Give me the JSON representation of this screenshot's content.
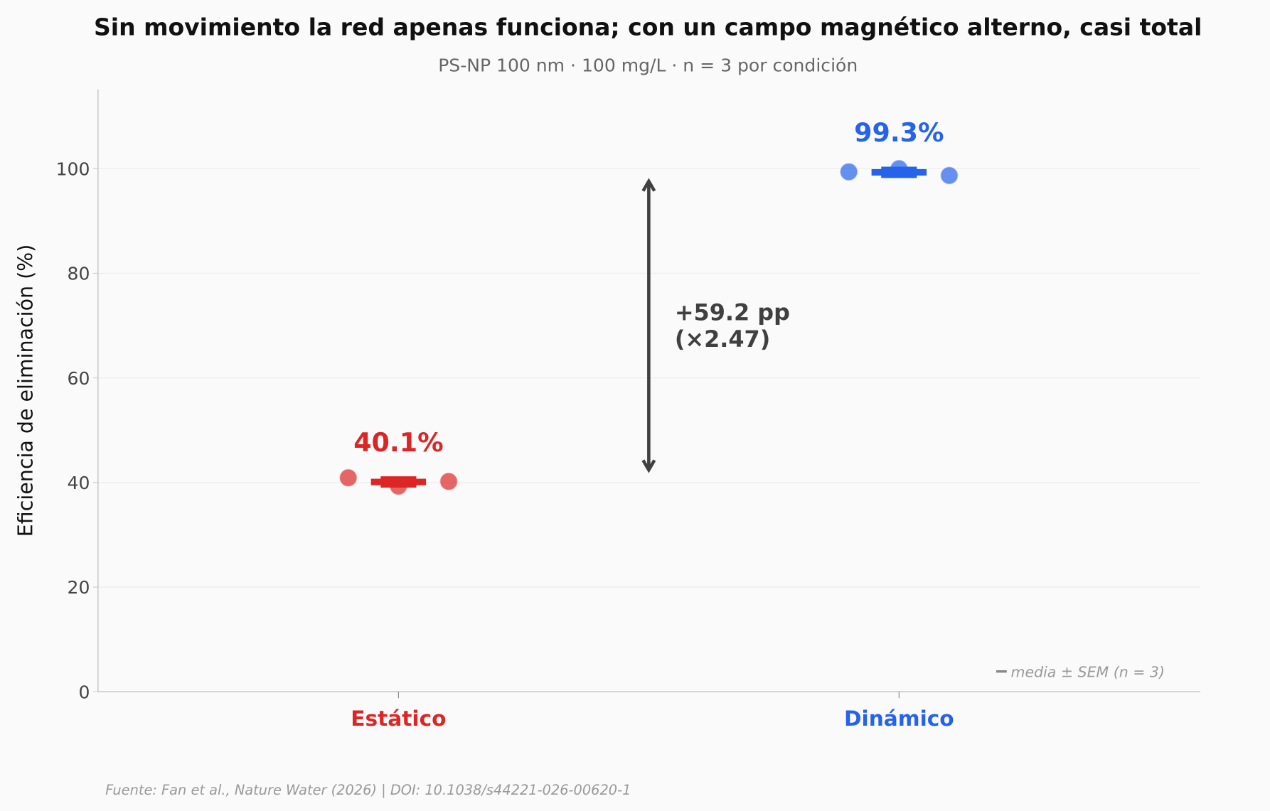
{
  "chart_data": {
    "type": "scatter",
    "title": "Sin movimiento la red apenas funciona; con un campo magnético alterno, casi total",
    "subtitle": "PS-NP 100 nm · 100 mg/L · n = 3 por condición",
    "ylabel": "Eficiencia de eliminación (%)",
    "xlabel": "",
    "ylim": [
      0,
      115
    ],
    "yticks": [
      0,
      20,
      40,
      60,
      80,
      100
    ],
    "grid": "horizontal",
    "categories": [
      "Estático",
      "Dinámico"
    ],
    "series": [
      {
        "category": "Estático",
        "color": "#dc2626",
        "points": [
          40.9,
          39.3,
          40.2
        ],
        "mean": 40.1,
        "sem": 0.5,
        "mean_label": "40.1%"
      },
      {
        "category": "Dinámico",
        "color": "#2563eb",
        "points": [
          99.4,
          100.0,
          98.7
        ],
        "mean": 99.3,
        "sem": 0.4,
        "mean_label": "99.3%"
      }
    ],
    "annotation": {
      "from": 42.4,
      "to": 97.6,
      "line1": "+59.2 pp",
      "line2": "(×2.47)",
      "color": "#404040"
    },
    "legend": {
      "text": "media ± SEM (n = 3)",
      "placement": "bottom-right"
    },
    "source": "Fuente: Fan et al., Nature Water (2026) | DOI: 10.1038/s44221-026-00620-1"
  }
}
